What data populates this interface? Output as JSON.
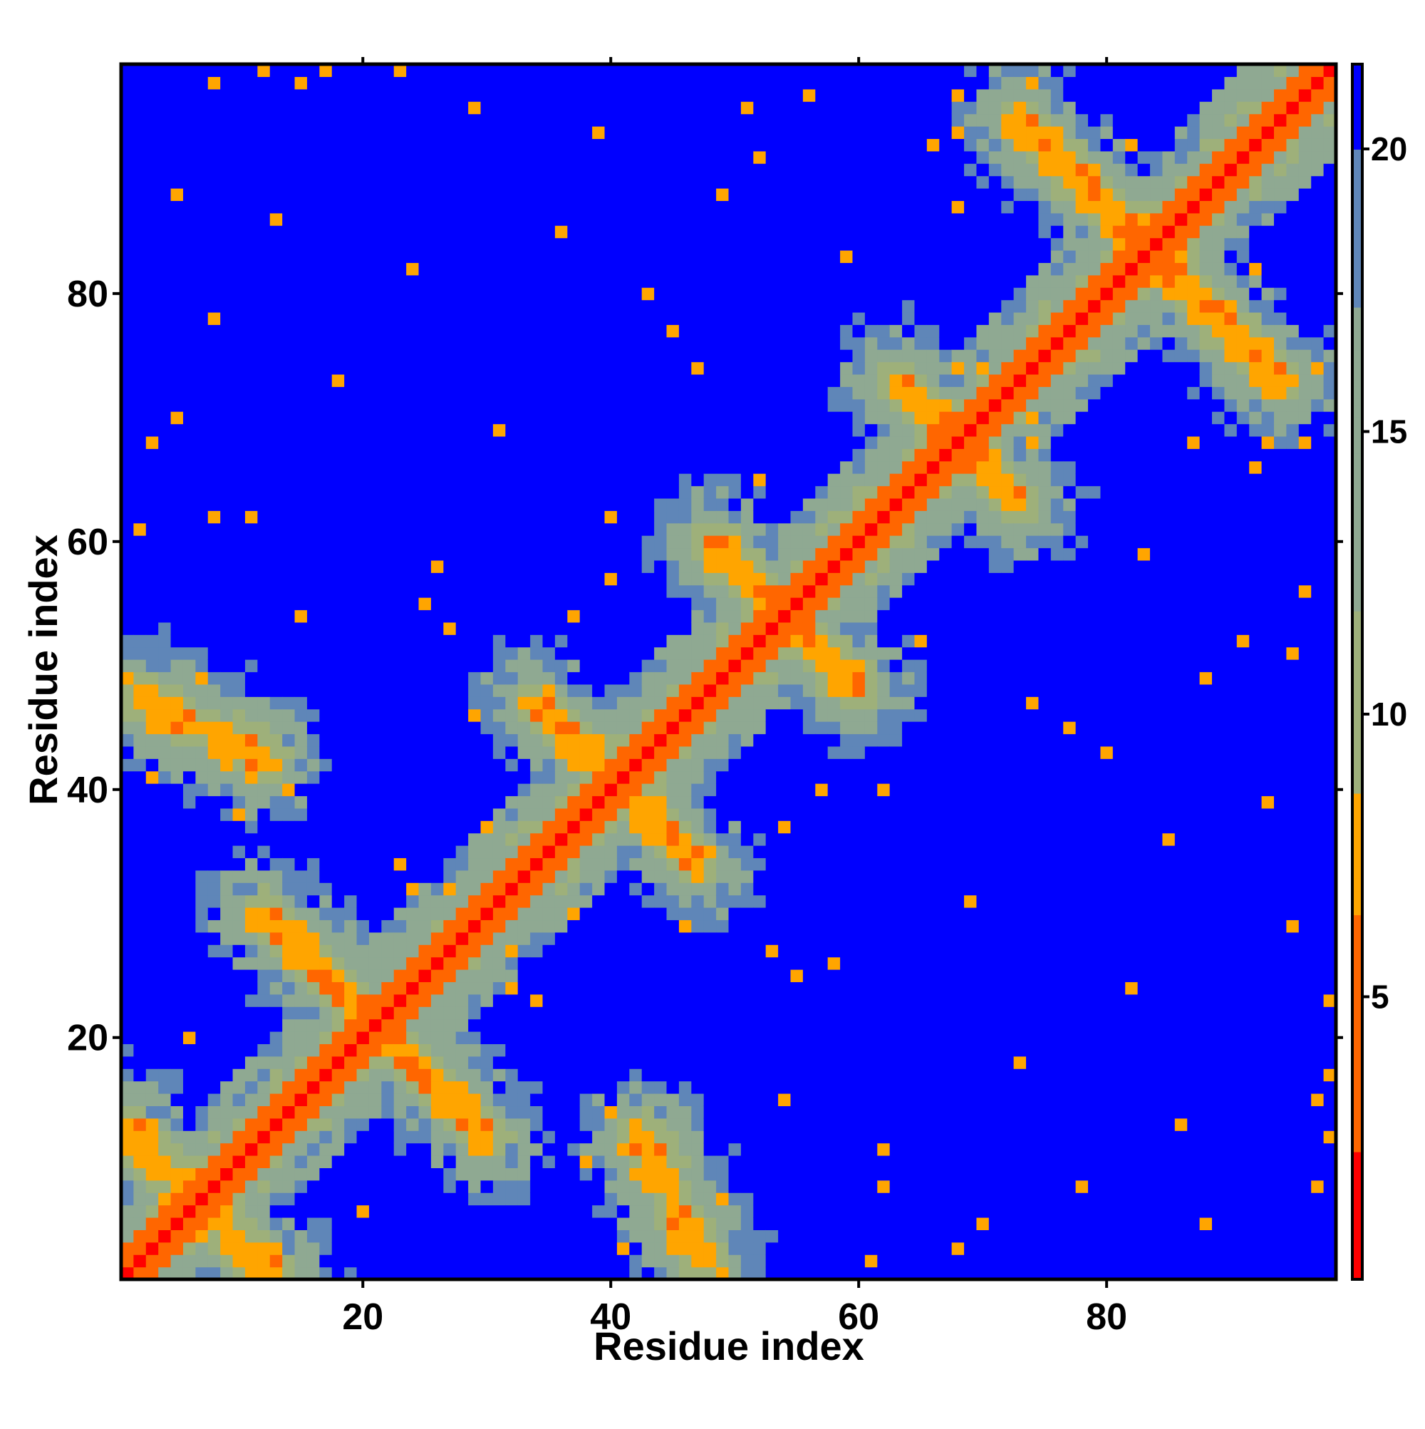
{
  "chart_data": {
    "type": "heatmap",
    "title": "",
    "xlabel": "Residue index",
    "ylabel": "Residue index",
    "n_residues": 98,
    "xlim": [
      1,
      98
    ],
    "ylim": [
      1,
      98
    ],
    "x_ticks": [
      20,
      40,
      60,
      80
    ],
    "y_ticks": [
      20,
      40,
      60,
      80
    ],
    "colorbar": {
      "range": [
        0,
        21.5
      ],
      "ticks": [
        5,
        10,
        15,
        20
      ],
      "stops": [
        {
          "value": 0,
          "color": "#ff0000"
        },
        {
          "value": 4.5,
          "color": "#ff6600"
        },
        {
          "value": 8.5,
          "color": "#ffa500"
        },
        {
          "value": 8.6,
          "color": "#9eb07a"
        },
        {
          "value": 15,
          "color": "#8fa992"
        },
        {
          "value": 19.5,
          "color": "#5f86b8"
        },
        {
          "value": 20.5,
          "color": "#0000ff"
        }
      ]
    },
    "description_of_values": "Symmetric residue-residue distance map; diagonal ~0 (red), long anti-diagonal contacts ~5-8 (orange), moderate regions ~10-20 (grey-green/steel blue), saturated far distances >20 (blue).",
    "contact_bands": [
      {
        "name": "diagonal",
        "kind": "diag",
        "offset": 0
      },
      {
        "from": [
          1,
          12
        ],
        "to": [
          13,
          1
        ],
        "kind": "anti"
      },
      {
        "from": [
          12,
          30
        ],
        "to": [
          30,
          12
        ],
        "kind": "anti"
      },
      {
        "from": [
          34,
          47
        ],
        "to": [
          47,
          34
        ],
        "kind": "anti"
      },
      {
        "from": [
          48,
          60
        ],
        "to": [
          60,
          48
        ],
        "kind": "anti"
      },
      {
        "from": [
          63,
          73
        ],
        "to": [
          73,
          63
        ],
        "kind": "anti"
      },
      {
        "from": [
          73,
          94
        ],
        "to": [
          94,
          73
        ],
        "kind": "anti"
      },
      {
        "from": [
          2,
          48
        ],
        "to": [
          12,
          42
        ],
        "kind": "offdiag"
      },
      {
        "from": [
          43,
          12
        ],
        "to": [
          47,
          2
        ],
        "kind": "offdiag"
      }
    ]
  }
}
